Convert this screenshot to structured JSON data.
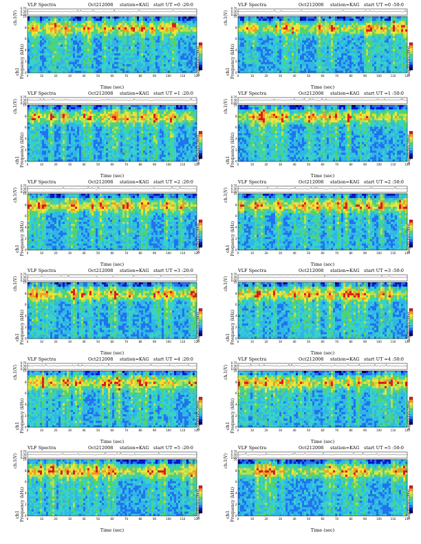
{
  "chart_data": [
    {
      "type": "heatmap",
      "title": "VLF Spectra",
      "date": "Oct212008",
      "station": "station=KAG",
      "start": "start  UT =0 :20:0",
      "trace_label": "ch.1(V)",
      "trace_ticks": [
        "0.00",
        "0.30",
        "0.70"
      ],
      "ylabel": "Frequency  (kHz)",
      "channel": "ch1",
      "xlabel": "Time  (sec)",
      "xticks": [
        0,
        10,
        20,
        30,
        40,
        50,
        60,
        70,
        80,
        90,
        100,
        110,
        120
      ],
      "yticks": [
        0,
        2,
        4,
        6,
        8,
        10
      ],
      "xlim": [
        0,
        120
      ],
      "ylim": [
        0,
        10
      ],
      "colorbar_label": "log(PSD(V²/Hz)"
    },
    {
      "type": "heatmap",
      "title": "VLF Spectra",
      "date": "Oct212008",
      "station": "station=KAG",
      "start": "start  UT =0 :50:0",
      "trace_label": "ch.1(V)",
      "trace_ticks": [
        "0.00",
        "0.30",
        "0.70"
      ],
      "ylabel": "Frequency  (kHz)",
      "channel": "ch1",
      "xlabel": "Time  (sec)",
      "xticks": [
        0,
        10,
        20,
        30,
        40,
        50,
        60,
        70,
        80,
        90,
        100,
        110,
        120
      ],
      "yticks": [
        0,
        2,
        4,
        6,
        8,
        10
      ],
      "xlim": [
        0,
        120
      ],
      "ylim": [
        0,
        10
      ],
      "colorbar_label": "log(PSD(V²/Hz)"
    },
    {
      "type": "heatmap",
      "title": "VLF Spectra",
      "date": "Oct212008",
      "station": "station=KAG",
      "start": "start  UT =1 :20:0",
      "trace_label": "ch.1(V)",
      "trace_ticks": [
        "0.00",
        "0.30",
        "0.70"
      ],
      "ylabel": "Frequency  (kHz)",
      "channel": "ch1",
      "xlabel": "Time  (sec)",
      "xticks": [
        0,
        10,
        20,
        30,
        40,
        50,
        60,
        70,
        80,
        90,
        100,
        110,
        120
      ],
      "yticks": [
        0,
        2,
        4,
        6,
        8,
        10
      ],
      "xlim": [
        0,
        120
      ],
      "ylim": [
        0,
        10
      ],
      "colorbar_label": "log(PSD(V²/Hz)"
    },
    {
      "type": "heatmap",
      "title": "VLF Spectra",
      "date": "Oct212008",
      "station": "station=KAG",
      "start": "start  UT =1 :50:0",
      "trace_label": "ch.1(V)",
      "trace_ticks": [
        "0.00",
        "0.30",
        "0.70"
      ],
      "ylabel": "Frequency  (kHz)",
      "channel": "ch1",
      "xlabel": "Time  (sec)",
      "xticks": [
        0,
        10,
        20,
        30,
        40,
        50,
        60,
        70,
        80,
        90,
        100,
        110,
        120
      ],
      "yticks": [
        0,
        2,
        4,
        6,
        8,
        10
      ],
      "xlim": [
        0,
        120
      ],
      "ylim": [
        0,
        10
      ],
      "colorbar_label": "log(PSD(V²/Hz)"
    },
    {
      "type": "heatmap",
      "title": "VLF Spectra",
      "date": "Oct212008",
      "station": "station=KAG",
      "start": "start  UT =2 :20:0",
      "trace_label": "ch.1(V)",
      "trace_ticks": [
        "0.00",
        "0.30",
        "0.70"
      ],
      "ylabel": "Frequency  (kHz)",
      "channel": "ch1",
      "xlabel": "Time  (sec)",
      "xticks": [
        0,
        10,
        20,
        30,
        40,
        50,
        60,
        70,
        80,
        90,
        100,
        110,
        120
      ],
      "yticks": [
        0,
        2,
        4,
        6,
        8,
        10
      ],
      "xlim": [
        0,
        120
      ],
      "ylim": [
        0,
        10
      ],
      "colorbar_label": "log(PSD(V²/Hz)"
    },
    {
      "type": "heatmap",
      "title": "VLF Spectra",
      "date": "Oct212008",
      "station": "station=KAG",
      "start": "start  UT =2 :50:0",
      "trace_label": "ch.1(V)",
      "trace_ticks": [
        "0.00",
        "0.30",
        "0.70"
      ],
      "ylabel": "Frequency  (kHz)",
      "channel": "ch1",
      "xlabel": "Time  (sec)",
      "xticks": [
        0,
        10,
        20,
        30,
        40,
        50,
        60,
        70,
        80,
        90,
        100,
        110,
        120
      ],
      "yticks": [
        0,
        2,
        4,
        6,
        8,
        10
      ],
      "xlim": [
        0,
        120
      ],
      "ylim": [
        0,
        10
      ],
      "colorbar_label": "log(PSD(V²/Hz)"
    },
    {
      "type": "heatmap",
      "title": "VLF Spectra",
      "date": "Oct212008",
      "station": "station=KAG",
      "start": "start  UT =3 :20:0",
      "trace_label": "ch.1(V)",
      "trace_ticks": [
        "0.00",
        "0.30",
        "0.70"
      ],
      "ylabel": "Frequency  (kHz)",
      "channel": "ch1",
      "xlabel": "Time  (sec)",
      "xticks": [
        0,
        10,
        20,
        30,
        40,
        50,
        60,
        70,
        80,
        90,
        100,
        110,
        120
      ],
      "yticks": [
        0,
        2,
        4,
        6,
        8,
        10
      ],
      "xlim": [
        0,
        120
      ],
      "ylim": [
        0,
        10
      ],
      "colorbar_label": "log(PSD(V²/Hz)"
    },
    {
      "type": "heatmap",
      "title": "VLF Spectra",
      "date": "Oct212008",
      "station": "station=KAG",
      "start": "start  UT =3 :50:0",
      "trace_label": "ch.1(V)",
      "trace_ticks": [
        "0.00",
        "0.30",
        "0.70"
      ],
      "ylabel": "Frequency  (kHz)",
      "channel": "ch1",
      "xlabel": "Time  (sec)",
      "xticks": [
        0,
        10,
        20,
        30,
        40,
        50,
        60,
        70,
        80,
        90,
        100,
        110,
        120
      ],
      "yticks": [
        0,
        2,
        4,
        6,
        8,
        10
      ],
      "xlim": [
        0,
        120
      ],
      "ylim": [
        0,
        10
      ],
      "colorbar_label": "log(PSD(V²/Hz)"
    },
    {
      "type": "heatmap",
      "title": "VLF Spectra",
      "date": "Oct212008",
      "station": "station=KAG",
      "start": "start  UT =4 :20:0",
      "trace_label": "ch.1(V)",
      "trace_ticks": [
        "0.00",
        "0.30",
        "0.70"
      ],
      "ylabel": "Frequency  (kHz)",
      "channel": "ch1",
      "xlabel": "Time  (sec)",
      "xticks": [
        0,
        10,
        20,
        30,
        40,
        50,
        60,
        70,
        80,
        90,
        100,
        110,
        120
      ],
      "yticks": [
        0,
        2,
        4,
        6,
        8,
        10
      ],
      "xlim": [
        0,
        120
      ],
      "ylim": [
        0,
        10
      ],
      "colorbar_label": "log(PSD(V²/Hz)"
    },
    {
      "type": "heatmap",
      "title": "VLF Spectra",
      "date": "Oct212008",
      "station": "station=KAG",
      "start": "start  UT =4 :50:0",
      "trace_label": "ch.1(V)",
      "trace_ticks": [
        "0.00",
        "0.30",
        "0.70"
      ],
      "ylabel": "Frequency  (kHz)",
      "channel": "ch1",
      "xlabel": "Time  (sec)",
      "xticks": [
        0,
        10,
        20,
        30,
        40,
        50,
        60,
        70,
        80,
        90,
        100,
        110,
        120
      ],
      "yticks": [
        0,
        2,
        4,
        6,
        8,
        10
      ],
      "xlim": [
        0,
        120
      ],
      "ylim": [
        0,
        10
      ],
      "colorbar_label": "log(PSD(V²/Hz)"
    },
    {
      "type": "heatmap",
      "title": "VLF Spectra",
      "date": "Oct212008",
      "station": "station=KAG",
      "start": "start  UT =5 :20:0",
      "trace_label": "ch.1(V)",
      "trace_ticks": [
        "0.00",
        "0.30",
        "0.70"
      ],
      "ylabel": "Frequency  (kHz)",
      "channel": "ch1",
      "xlabel": "Time  (sec)",
      "xticks": [
        0,
        10,
        20,
        30,
        40,
        50,
        60,
        70,
        80,
        90,
        100,
        110,
        120
      ],
      "yticks": [
        0,
        2,
        4,
        6,
        8,
        10
      ],
      "xlim": [
        0,
        120
      ],
      "ylim": [
        0,
        10
      ],
      "colorbar_label": "log(PSD(V²/Hz)"
    },
    {
      "type": "heatmap",
      "title": "VLF Spectra",
      "date": "Oct212008",
      "station": "station=KAG",
      "start": "start  UT =5 :50:0",
      "trace_label": "ch.1(V)",
      "trace_ticks": [
        "0.00",
        "0.30",
        "0.70"
      ],
      "ylabel": "Frequency  (kHz)",
      "channel": "ch1",
      "xlabel": "Time  (sec)",
      "xticks": [
        0,
        10,
        20,
        30,
        40,
        50,
        60,
        70,
        80,
        90,
        100,
        110,
        120
      ],
      "yticks": [
        0,
        2,
        4,
        6,
        8,
        10
      ],
      "xlim": [
        0,
        120
      ],
      "ylim": [
        0,
        10
      ],
      "colorbar_label": "log(PSD(V²/Hz)"
    }
  ],
  "colormap": [
    "#00004a",
    "#0018c8",
    "#1f73ee",
    "#2fb6e8",
    "#36d2c8",
    "#52d26b",
    "#b4e04a",
    "#f4e23a",
    "#f59a22",
    "#d51f1f"
  ]
}
